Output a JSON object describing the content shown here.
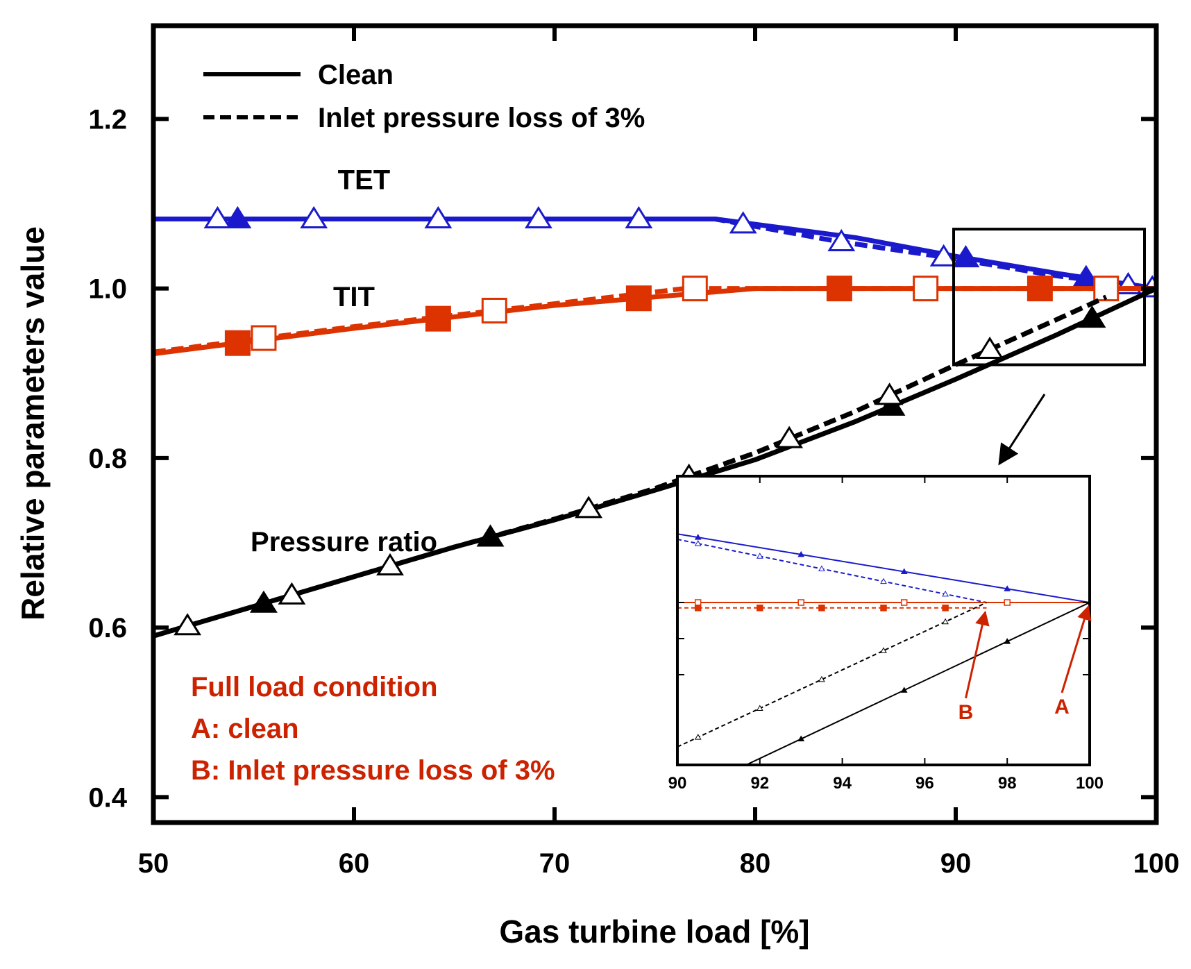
{
  "chart_data": [
    {
      "type": "line",
      "title": "",
      "xlabel": "Gas turbine load [%]",
      "ylabel": "Relative parameters value",
      "xlim": [
        50,
        100
      ],
      "ylim": [
        0.37,
        1.31
      ],
      "x_ticks": [
        50,
        60,
        70,
        80,
        90,
        100
      ],
      "x_tick_labels": [
        "50",
        "60",
        "70",
        "80",
        "90",
        "100"
      ],
      "y_ticks": [
        0.4,
        0.6,
        0.8,
        1.0,
        1.2
      ],
      "y_tick_labels": [
        "0.4",
        "0.6",
        "0.8",
        "1.0",
        "1.2"
      ],
      "legend": {
        "position": "top-left",
        "entries": [
          {
            "label": "Clean",
            "style": "solid"
          },
          {
            "label": "Inlet pressure loss of 3%",
            "style": "dashed"
          }
        ]
      },
      "curve_labels": [
        {
          "text": "TET",
          "x": 60.5,
          "y": 1.117
        },
        {
          "text": "TIT",
          "x": 60.0,
          "y": 0.979
        },
        {
          "text": "Pressure ratio",
          "x": 59.5,
          "y": 0.69
        }
      ],
      "annotations": {
        "full_load_note": [
          "Full load condition",
          "A: clean",
          "B: Inlet pressure loss of 3%"
        ]
      },
      "zoom_box": {
        "x": [
          90,
          100
        ],
        "y": [
          0.91,
          1.07
        ]
      },
      "series": [
        {
          "name": "TET (clean)",
          "color": "#1a1acc",
          "style": "solid",
          "marker": "triangle-filled",
          "x": [
            50,
            54.2,
            78,
            85,
            90,
            95,
            100
          ],
          "y": [
            1.082,
            1.082,
            1.082,
            1.06,
            1.038,
            1.018,
            1.0
          ],
          "marker_x": [
            54.2,
            90.5,
            96.5
          ]
        },
        {
          "name": "TET (inlet loss 3%)",
          "color": "#1a1acc",
          "style": "dashed",
          "marker": "triangle-open",
          "x": [
            50,
            78,
            84,
            90,
            95,
            100
          ],
          "y": [
            1.082,
            1.082,
            1.056,
            1.035,
            1.015,
            1.0
          ],
          "marker_x": [
            53.2,
            58.0,
            64.2,
            69.2,
            74.2,
            79.4,
            84.3,
            89.4,
            98.6,
            99.8
          ]
        },
        {
          "name": "TIT (clean)",
          "color": "#dd3300",
          "style": "solid",
          "marker": "square-filled",
          "x": [
            50,
            60,
            70,
            75,
            80,
            90,
            100
          ],
          "y": [
            0.923,
            0.953,
            0.98,
            0.99,
            1.0,
            1.0,
            1.0
          ],
          "marker_x": [
            54.2,
            64.2,
            74.2,
            84.2,
            94.2
          ]
        },
        {
          "name": "TIT (inlet loss 3%)",
          "color": "#dd3300",
          "style": "dashed",
          "marker": "square-open",
          "x": [
            50,
            60,
            70,
            76.5,
            90,
            100
          ],
          "y": [
            0.925,
            0.955,
            0.982,
            1.0,
            1.0,
            1.0
          ],
          "marker_x": [
            55.5,
            67.0,
            77.0,
            88.5,
            97.5
          ]
        },
        {
          "name": "Pressure ratio (clean)",
          "color": "#000000",
          "style": "solid",
          "marker": "triangle-filled",
          "x": [
            50,
            55,
            60,
            65,
            70,
            75,
            80,
            85,
            90,
            95,
            100
          ],
          "y": [
            0.59,
            0.625,
            0.66,
            0.695,
            0.727,
            0.762,
            0.798,
            0.843,
            0.893,
            0.945,
            1.0
          ],
          "marker_x": [
            55.5,
            66.8,
            86.8,
            96.8
          ]
        },
        {
          "name": "Pressure ratio (inlet loss 3%)",
          "color": "#000000",
          "style": "dashed",
          "marker": "triangle-open",
          "x": [
            50,
            55,
            60,
            65,
            70,
            75,
            80,
            85,
            90,
            95,
            97.5
          ],
          "y": [
            0.59,
            0.625,
            0.66,
            0.695,
            0.728,
            0.764,
            0.806,
            0.855,
            0.91,
            0.963,
            0.99
          ],
          "marker_x": [
            51.7,
            56.9,
            61.8,
            71.7,
            76.7,
            81.7,
            86.7,
            91.7
          ]
        }
      ]
    },
    {
      "type": "line",
      "title": "",
      "xlabel": "",
      "ylabel": "",
      "xlim": [
        90,
        100
      ],
      "x_ticks": [
        90,
        92,
        94,
        96,
        98,
        100
      ],
      "x_tick_labels": [
        "90",
        "92",
        "94",
        "96",
        "98",
        "100"
      ],
      "y_ticks": [
        0.96,
        0.98,
        1.0
      ],
      "ylim": [
        0.91,
        1.07
      ],
      "annotations": [
        {
          "text": "B",
          "target_x": 97.5,
          "target_y": 0.997
        },
        {
          "text": "A",
          "target_x": 100,
          "target_y": 1.0
        }
      ],
      "series": [
        {
          "name": "TET (clean)",
          "color": "#1a1acc",
          "style": "solid",
          "x": [
            90,
            100
          ],
          "y": [
            1.038,
            1.0
          ]
        },
        {
          "name": "TET (inlet loss 3%)",
          "color": "#1a1acc",
          "style": "dashed",
          "x": [
            90,
            97.5
          ],
          "y": [
            1.035,
            1.0
          ]
        },
        {
          "name": "TIT (clean)",
          "color": "#dd3300",
          "style": "solid",
          "x": [
            90,
            100
          ],
          "y": [
            1.0,
            1.0
          ]
        },
        {
          "name": "TIT (inlet loss 3%)",
          "color": "#dd3300",
          "style": "dashed",
          "x": [
            90,
            97.5
          ],
          "y": [
            0.997,
            0.997
          ]
        },
        {
          "name": "Pressure ratio (clean)",
          "color": "#000000",
          "style": "solid",
          "x": [
            90,
            100
          ],
          "y": [
            0.892,
            1.0
          ]
        },
        {
          "name": "Pressure ratio (inlet loss 3%)",
          "color": "#000000",
          "style": "dashed",
          "x": [
            90,
            97.5
          ],
          "y": [
            0.92,
            1.0
          ]
        }
      ]
    }
  ]
}
